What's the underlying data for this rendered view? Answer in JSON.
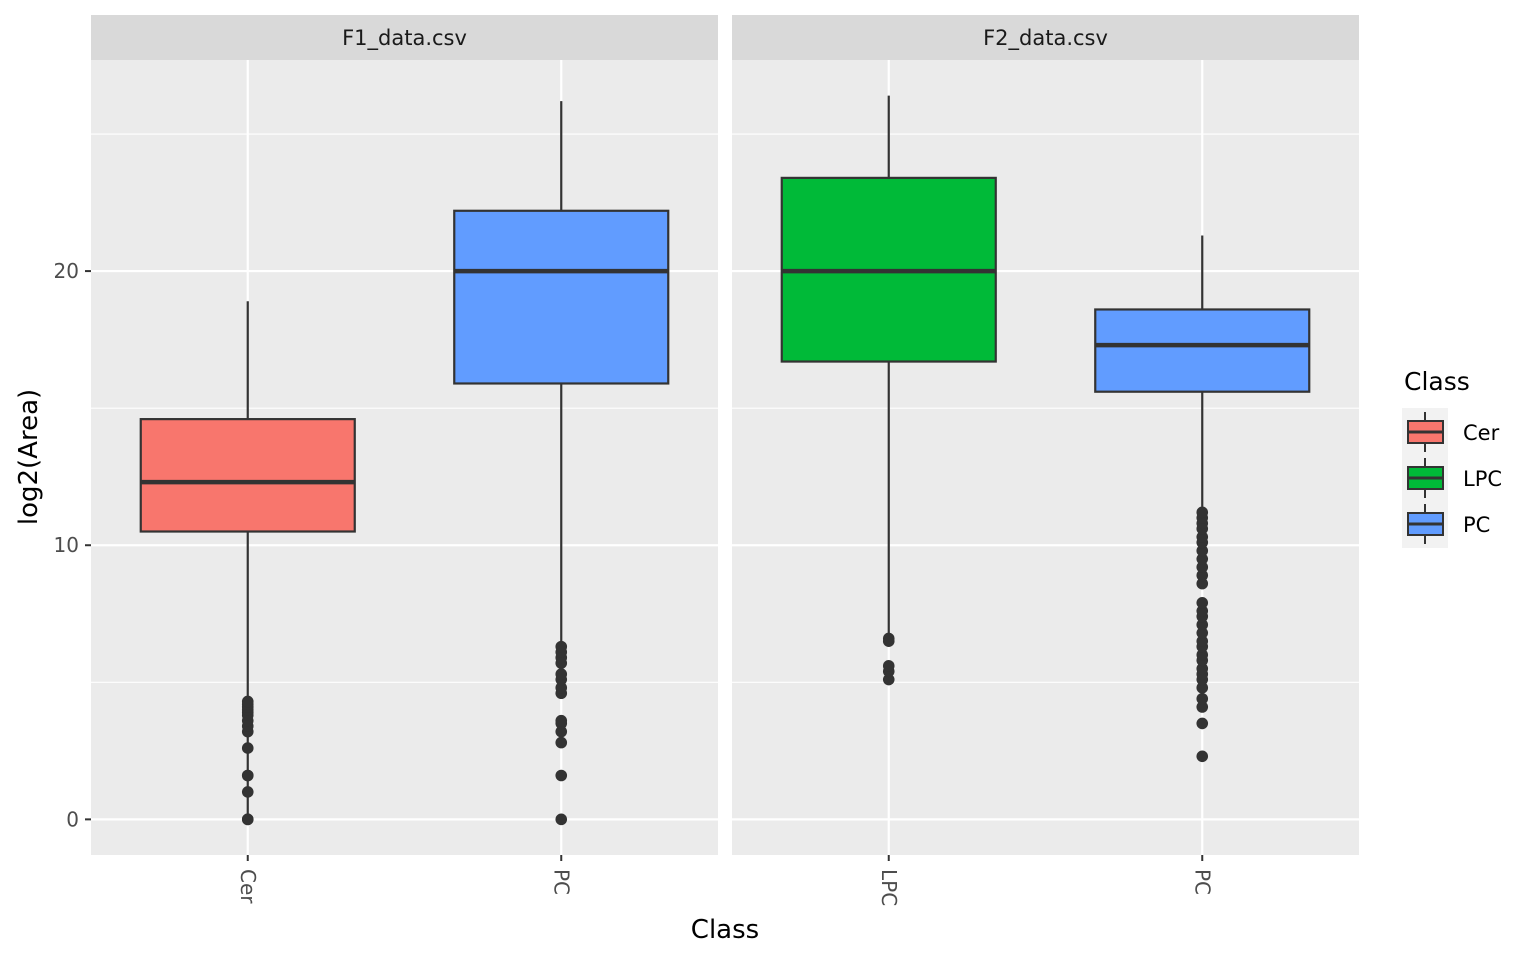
{
  "chart_data": {
    "type": "boxplot",
    "xlabel": "Class",
    "ylabel": "log2(Area)",
    "ylim": [
      -1.3,
      27.7
    ],
    "yticks": [
      0,
      10,
      20
    ],
    "y_minor_ticks": [
      5,
      15,
      25
    ],
    "grid": true,
    "legend": {
      "title": "Class",
      "placement": "right",
      "items": [
        {
          "label": "Cer",
          "color": "#F8766D"
        },
        {
          "label": "LPC",
          "color": "#00BA38"
        },
        {
          "label": "PC",
          "color": "#619CFF"
        }
      ]
    },
    "facets": [
      {
        "label": "F1_data.csv",
        "categories": [
          "Cer",
          "PC"
        ],
        "boxes": [
          {
            "class": "Cer",
            "color": "#F8766D",
            "lower_whisker": 0,
            "q1": 10.5,
            "median": 12.3,
            "q3": 14.6,
            "upper_whisker": 18.9,
            "outliers": [
              0,
              0,
              1.0,
              1.6,
              1.6,
              2.6,
              3.2,
              3.4,
              3.6,
              3.8,
              3.9,
              4.0,
              4.1,
              4.2,
              4.3
            ]
          },
          {
            "class": "PC",
            "color": "#619CFF",
            "lower_whisker": 6.5,
            "q1": 15.9,
            "median": 20.0,
            "q3": 22.2,
            "upper_whisker": 26.2,
            "outliers": [
              0,
              1.6,
              2.8,
              3.2,
              3.5,
              3.6,
              4.6,
              4.8,
              5.1,
              5.3,
              5.7,
              5.9,
              6.1,
              6.3
            ]
          }
        ]
      },
      {
        "label": "F2_data.csv",
        "categories": [
          "LPC",
          "PC"
        ],
        "boxes": [
          {
            "class": "LPC",
            "color": "#00BA38",
            "lower_whisker": 6.7,
            "q1": 16.7,
            "median": 20.0,
            "q3": 23.4,
            "upper_whisker": 26.4,
            "outliers": [
              5.1,
              5.4,
              5.6,
              6.5,
              6.6
            ]
          },
          {
            "class": "PC",
            "color": "#619CFF",
            "lower_whisker": 11.4,
            "q1": 15.6,
            "median": 17.3,
            "q3": 18.6,
            "upper_whisker": 21.3,
            "outliers": [
              2.3,
              3.5,
              4.1,
              4.4,
              4.8,
              5.1,
              5.3,
              5.5,
              5.8,
              6.0,
              6.3,
              6.5,
              6.8,
              7.1,
              7.4,
              7.6,
              7.9,
              8.6,
              8.9,
              9.2,
              9.5,
              9.8,
              10.1,
              10.3,
              10.6,
              10.8,
              11.0,
              11.2
            ]
          }
        ]
      }
    ]
  }
}
